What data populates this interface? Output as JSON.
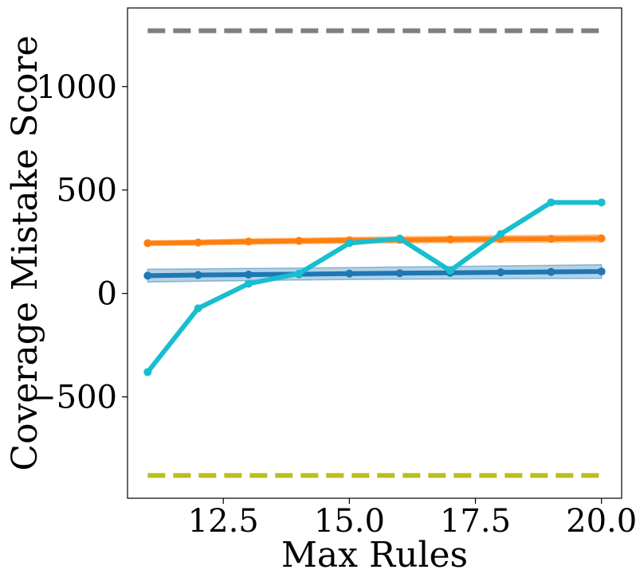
{
  "chart_data": {
    "type": "line",
    "xlabel": "Max Rules",
    "ylabel": "Coverage Mistake Score",
    "xlim": [
      10.6,
      20.4
    ],
    "ylim": [
      -990,
      1380
    ],
    "xticks": [
      12.5,
      15.0,
      17.5,
      20.0
    ],
    "xtick_labels": [
      "12.5",
      "15.0",
      "17.5",
      "20.0"
    ],
    "yticks": [
      -500,
      0,
      500,
      1000
    ],
    "ytick_labels": [
      "−500",
      "0",
      "500",
      "1000"
    ],
    "grid": false,
    "legend": "none",
    "x": [
      11,
      12,
      13,
      14,
      15,
      16,
      17,
      18,
      19,
      20
    ],
    "series": [
      {
        "color": "#ff7f0e",
        "style": "solid-markers",
        "values": [
          243,
          246,
          251,
          254,
          257,
          259,
          261,
          263,
          264,
          266
        ],
        "band_lower": [
          232,
          234,
          238,
          241,
          243,
          244,
          246,
          247,
          248,
          249
        ],
        "band_upper": [
          254,
          258,
          264,
          267,
          271,
          274,
          276,
          279,
          280,
          283
        ]
      },
      {
        "color": "#1f77b4",
        "style": "solid-markers",
        "values": [
          86,
          89,
          91,
          93,
          96,
          98,
          100,
          102,
          104,
          106
        ],
        "band_lower": [
          55,
          59,
          62,
          65,
          67,
          69,
          70,
          71,
          72,
          73
        ],
        "band_upper": [
          117,
          119,
          121,
          123,
          125,
          128,
          130,
          133,
          136,
          139
        ]
      },
      {
        "color": "#17becf",
        "style": "solid-markers",
        "values": [
          -380,
          -72,
          47,
          96,
          243,
          265,
          110,
          287,
          440,
          440
        ]
      },
      {
        "color": "#7f7f7f",
        "style": "dashed",
        "values": [
          1270,
          1270,
          1270,
          1270,
          1270,
          1270,
          1270,
          1270,
          1270,
          1270
        ]
      },
      {
        "color": "#bcbd22",
        "style": "dashed",
        "values": [
          -880,
          -880,
          -880,
          -880,
          -880,
          -880,
          -880,
          -880,
          -880,
          -880
        ]
      }
    ]
  }
}
